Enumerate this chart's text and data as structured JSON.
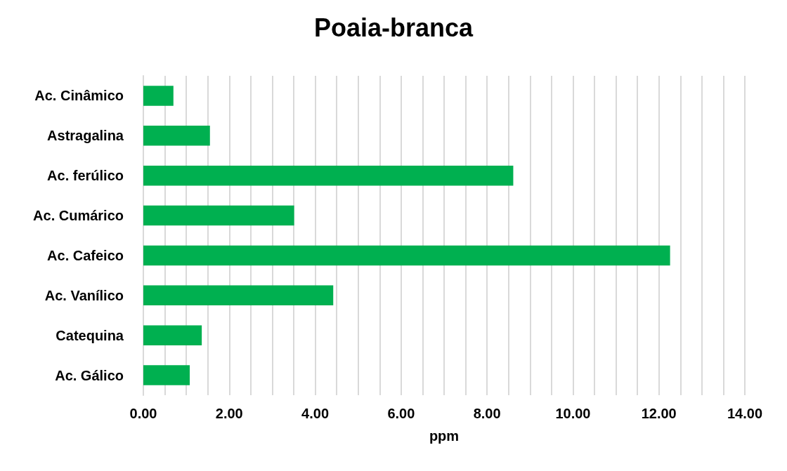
{
  "chart_data": {
    "type": "bar",
    "title": "Poaia-branca",
    "xlabel": "ppm",
    "orientation": "horizontal",
    "categories": [
      "Ac. Cinâmico",
      "Astragalina",
      "Ac. ferúlico",
      "Ac. Cumárico",
      "Ac. Cafeico",
      "Ac. Vanílico",
      "Catequina",
      "Ac. Gálico"
    ],
    "values": [
      0.7,
      1.55,
      8.61,
      3.51,
      12.26,
      4.42,
      1.36,
      1.08
    ],
    "color": "#00b050",
    "xlim": [
      0,
      14
    ],
    "xticks": [
      {
        "value": 0,
        "label": "0.00"
      },
      {
        "value": 0.5,
        "label": null
      },
      {
        "value": 1,
        "label": null
      },
      {
        "value": 1.5,
        "label": null
      },
      {
        "value": 2,
        "label": "2.00"
      },
      {
        "value": 2.5,
        "label": null
      },
      {
        "value": 3,
        "label": null
      },
      {
        "value": 3.5,
        "label": null
      },
      {
        "value": 4,
        "label": "4.00"
      },
      {
        "value": 4.5,
        "label": null
      },
      {
        "value": 5,
        "label": null
      },
      {
        "value": 5.5,
        "label": null
      },
      {
        "value": 6,
        "label": "6.00"
      },
      {
        "value": 6.5,
        "label": null
      },
      {
        "value": 7,
        "label": null
      },
      {
        "value": 7.5,
        "label": null
      },
      {
        "value": 8,
        "label": "8.00"
      },
      {
        "value": 8.5,
        "label": null
      },
      {
        "value": 9,
        "label": null
      },
      {
        "value": 9.5,
        "label": null
      },
      {
        "value": 10,
        "label": "10.00"
      },
      {
        "value": 10.5,
        "label": null
      },
      {
        "value": 11,
        "label": null
      },
      {
        "value": 11.5,
        "label": null
      },
      {
        "value": 12,
        "label": "12.00"
      },
      {
        "value": 12.5,
        "label": null
      },
      {
        "value": 13,
        "label": null
      },
      {
        "value": 13.5,
        "label": null
      },
      {
        "value": 14,
        "label": "14.00"
      }
    ],
    "grid": "x"
  }
}
